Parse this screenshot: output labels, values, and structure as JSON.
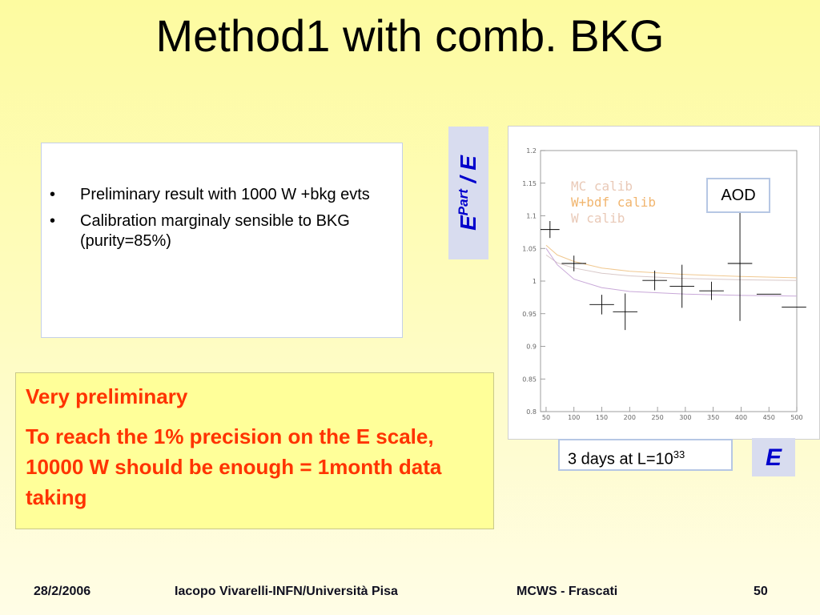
{
  "slide": {
    "title": "Method1 with comb. BKG",
    "bullets": [
      "Preliminary result with 1000 W +bkg evts",
      "Calibration marginaly sensible to BKG (purity=85%)"
    ],
    "bullet_symbol": "•",
    "note_line1": "Very preliminary",
    "note_line2": "To reach the 1% precision on the E scale,  10000 W should be enough = 1month data taking",
    "aod_label": "AOD",
    "days_text": "3 days at L=10",
    "days_exp": "33",
    "ylabel_main": "E",
    "ylabel_sup": "Part",
    "ylabel_sep": " / ",
    "ylabel_den": "E",
    "xlabel": "E",
    "footer": {
      "date": "28/2/2006",
      "author": "Iacopo Vivarelli-INFN/Università Pisa",
      "event": "MCWS - Frascati",
      "page": "50"
    }
  },
  "chart_data": {
    "type": "line",
    "xlim": [
      40,
      500
    ],
    "ylim": [
      0.8,
      1.2
    ],
    "xticks": [
      "50",
      "100",
      "150",
      "200",
      "250",
      "300",
      "350",
      "400",
      "450",
      "500"
    ],
    "yticks": [
      "0.8",
      "0.85",
      "0.9",
      "0.95",
      "1",
      "1.05",
      "1.1",
      "1.15",
      "1.2"
    ],
    "legend": [
      {
        "label": "MC calib",
        "color": "#e9c9b7"
      },
      {
        "label": "W+bdf calib",
        "color": "#f1b56e"
      },
      {
        "label": "W calib",
        "color": "#e9c9b7"
      }
    ],
    "colors": {
      "data": "#000000",
      "mc": "#d8c8c8",
      "wbdf": "#f0c890",
      "w": "#c8a8d8"
    },
    "points": [
      {
        "x": 57,
        "y": 1.079,
        "ex": 17,
        "ey": 0.013
      },
      {
        "x": 100,
        "y": 1.027,
        "ex": 22,
        "ey": 0.012
      },
      {
        "x": 150,
        "y": 0.964,
        "ex": 22,
        "ey": 0.015
      },
      {
        "x": 192,
        "y": 0.953,
        "ex": 22,
        "ey": 0.028
      },
      {
        "x": 245,
        "y": 1.001,
        "ex": 22,
        "ey": 0.015
      },
      {
        "x": 294,
        "y": 0.992,
        "ex": 22,
        "ey": 0.033
      },
      {
        "x": 347,
        "y": 0.985,
        "ex": 22,
        "ey": 0.014
      },
      {
        "x": 398,
        "y": 1.027,
        "ex": 22,
        "ey": 0.088
      },
      {
        "x": 450,
        "y": 0.98,
        "ex": 22,
        "ey": 0.0
      },
      {
        "x": 495,
        "y": 0.96,
        "ex": 22,
        "ey": 0.0
      }
    ],
    "curves": [
      {
        "name": "MC calib",
        "x": [
          50,
          70,
          100,
          150,
          200,
          300,
          400,
          500
        ],
        "y": [
          1.04,
          1.028,
          1.02,
          1.012,
          1.008,
          1.004,
          1.002,
          1.001
        ]
      },
      {
        "name": "W+bdf calib",
        "x": [
          50,
          70,
          100,
          150,
          200,
          300,
          400,
          500
        ],
        "y": [
          1.055,
          1.04,
          1.03,
          1.02,
          1.015,
          1.01,
          1.007,
          1.005
        ]
      },
      {
        "name": "W calib",
        "x": [
          50,
          70,
          100,
          150,
          200,
          300,
          400,
          500
        ],
        "y": [
          1.05,
          1.025,
          1.003,
          0.99,
          0.984,
          0.98,
          0.978,
          0.977
        ]
      }
    ]
  }
}
